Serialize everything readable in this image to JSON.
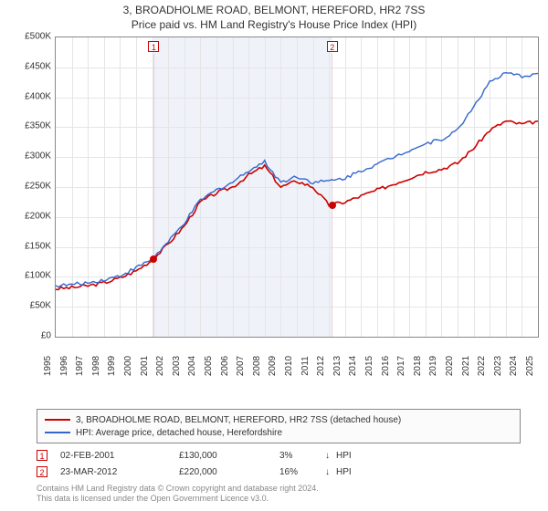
{
  "title_line1": "3, BROADHOLME ROAD, BELMONT, HEREFORD, HR2 7SS",
  "title_line2": "Price paid vs. HM Land Registry's House Price Index (HPI)",
  "chart": {
    "type": "line",
    "background_color": "#ffffff",
    "grid_color": "#e5e5e5",
    "border_color": "#888888",
    "shade_color": "#e8eef7",
    "x_years": [
      1995,
      1996,
      1997,
      1998,
      1999,
      2000,
      2001,
      2002,
      2003,
      2004,
      2005,
      2006,
      2007,
      2008,
      2009,
      2010,
      2011,
      2012,
      2013,
      2014,
      2015,
      2016,
      2017,
      2018,
      2019,
      2020,
      2021,
      2022,
      2023,
      2024,
      2025
    ],
    "x_min": 1995,
    "x_max": 2025,
    "ylim": [
      0,
      500000
    ],
    "ytick_step": 50000,
    "ytick_labels": [
      "£0",
      "£50K",
      "£100K",
      "£150K",
      "£200K",
      "£250K",
      "£300K",
      "£350K",
      "£400K",
      "£450K",
      "£500K"
    ],
    "label_fontsize": 10,
    "series": [
      {
        "name": "3, BROADHOLME ROAD, BELMONT, HEREFORD, HR2 7SS (detached house)",
        "color": "#cc0000",
        "line_width": 1.6,
        "data": [
          [
            1995,
            80000
          ],
          [
            1996,
            82000
          ],
          [
            1997,
            85000
          ],
          [
            1998,
            90000
          ],
          [
            1999,
            98000
          ],
          [
            2000,
            110000
          ],
          [
            2001,
            128000
          ],
          [
            2002,
            155000
          ],
          [
            2003,
            185000
          ],
          [
            2004,
            225000
          ],
          [
            2005,
            240000
          ],
          [
            2006,
            250000
          ],
          [
            2007,
            270000
          ],
          [
            2008,
            285000
          ],
          [
            2009,
            250000
          ],
          [
            2010,
            260000
          ],
          [
            2011,
            250000
          ],
          [
            2012,
            220000
          ],
          [
            2013,
            225000
          ],
          [
            2014,
            235000
          ],
          [
            2015,
            245000
          ],
          [
            2016,
            255000
          ],
          [
            2017,
            265000
          ],
          [
            2018,
            275000
          ],
          [
            2019,
            280000
          ],
          [
            2020,
            290000
          ],
          [
            2021,
            315000
          ],
          [
            2022,
            345000
          ],
          [
            2023,
            360000
          ],
          [
            2024,
            355000
          ],
          [
            2025,
            360000
          ]
        ]
      },
      {
        "name": "HPI: Average price, detached house, Herefordshire",
        "color": "#3366cc",
        "line_width": 1.4,
        "data": [
          [
            1995,
            85000
          ],
          [
            1996,
            87000
          ],
          [
            1997,
            90000
          ],
          [
            1998,
            95000
          ],
          [
            1999,
            102000
          ],
          [
            2000,
            115000
          ],
          [
            2001,
            130000
          ],
          [
            2002,
            158000
          ],
          [
            2003,
            190000
          ],
          [
            2004,
            228000
          ],
          [
            2005,
            245000
          ],
          [
            2006,
            258000
          ],
          [
            2007,
            278000
          ],
          [
            2008,
            292000
          ],
          [
            2009,
            258000
          ],
          [
            2010,
            268000
          ],
          [
            2011,
            258000
          ],
          [
            2012,
            260000
          ],
          [
            2013,
            265000
          ],
          [
            2014,
            278000
          ],
          [
            2015,
            288000
          ],
          [
            2016,
            300000
          ],
          [
            2017,
            312000
          ],
          [
            2018,
            322000
          ],
          [
            2019,
            330000
          ],
          [
            2020,
            345000
          ],
          [
            2021,
            385000
          ],
          [
            2022,
            425000
          ],
          [
            2023,
            440000
          ],
          [
            2024,
            435000
          ],
          [
            2025,
            440000
          ]
        ]
      }
    ],
    "markers": [
      {
        "label": "1",
        "year": 2001.1,
        "color": "#cc0000"
      },
      {
        "label": "2",
        "year": 2012.2,
        "color": "#cc0000"
      }
    ],
    "sale_dots": [
      {
        "year": 2001.1,
        "price": 130000,
        "color": "#cc0000"
      },
      {
        "year": 2012.2,
        "price": 220000,
        "color": "#cc0000"
      }
    ]
  },
  "legend": {
    "items": [
      {
        "label": "3, BROADHOLME ROAD, BELMONT, HEREFORD, HR2 7SS (detached house)",
        "color": "#cc0000"
      },
      {
        "label": "HPI: Average price, detached house, Herefordshire",
        "color": "#3366cc"
      }
    ]
  },
  "sales": [
    {
      "marker": "1",
      "marker_color": "#cc0000",
      "date": "02-FEB-2001",
      "price": "£130,000",
      "pct": "3%",
      "arrow": "↓",
      "hpi": "HPI"
    },
    {
      "marker": "2",
      "marker_color": "#cc0000",
      "date": "23-MAR-2012",
      "price": "£220,000",
      "pct": "16%",
      "arrow": "↓",
      "hpi": "HPI"
    }
  ],
  "footer_line1": "Contains HM Land Registry data © Crown copyright and database right 2024.",
  "footer_line2": "This data is licensed under the Open Government Licence v3.0."
}
